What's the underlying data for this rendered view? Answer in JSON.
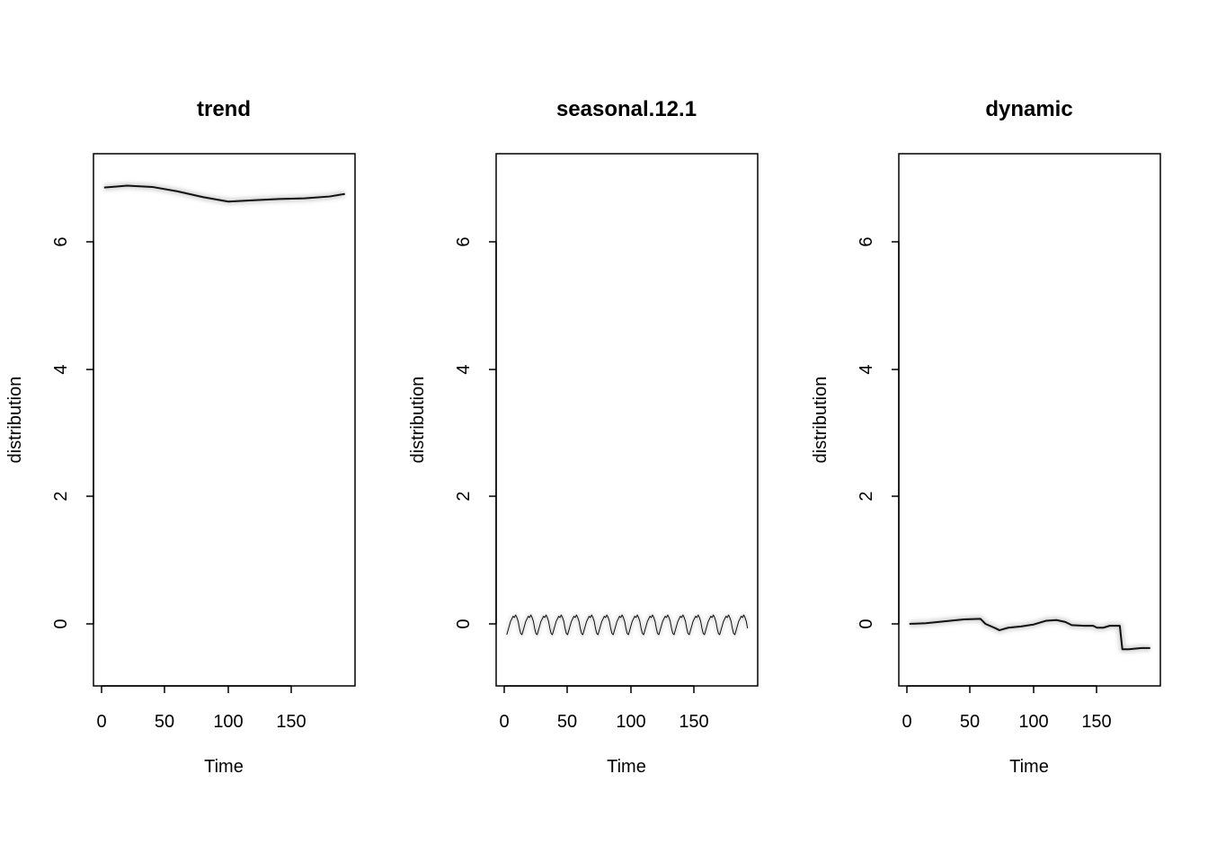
{
  "chart_data": [
    {
      "type": "line",
      "title": "trend",
      "xlabel": "Time",
      "ylabel": "distribution",
      "xlim": [
        0,
        192
      ],
      "ylim": [
        -1,
        7.4
      ],
      "xticks": [
        0,
        50,
        100,
        150
      ],
      "yticks": [
        0,
        2,
        4,
        6
      ],
      "grid": false,
      "series": [
        {
          "x": [
            2,
            20,
            40,
            60,
            80,
            100,
            120,
            140,
            160,
            180,
            192
          ],
          "values": [
            6.86,
            6.89,
            6.87,
            6.8,
            6.71,
            6.64,
            6.66,
            6.68,
            6.69,
            6.72,
            6.76
          ]
        }
      ]
    },
    {
      "type": "line",
      "title": "seasonal.12.1",
      "xlabel": "Time",
      "ylabel": "distribution",
      "xlim": [
        0,
        192
      ],
      "ylim": [
        -1,
        7.4
      ],
      "xticks": [
        0,
        50,
        100,
        150
      ],
      "yticks": [
        0,
        2,
        4,
        6
      ],
      "grid": false,
      "series": [
        {
          "period": 12,
          "x_start": 2,
          "x_end": 192,
          "pattern": [
            -0.17,
            -0.1,
            -0.03,
            0.04,
            0.08,
            0.12,
            0.1,
            0.14,
            0.1,
            0.04,
            -0.07,
            -0.15
          ]
        }
      ]
    },
    {
      "type": "line",
      "title": "dynamic",
      "xlabel": "Time",
      "ylabel": "distribution",
      "xlim": [
        0,
        192
      ],
      "ylim": [
        -1,
        7.4
      ],
      "xticks": [
        0,
        50,
        100,
        150
      ],
      "yticks": [
        0,
        2,
        4,
        6
      ],
      "grid": false,
      "series": [
        {
          "x": [
            2,
            15,
            30,
            45,
            58,
            62,
            70,
            73,
            80,
            90,
            100,
            110,
            118,
            125,
            130,
            140,
            147,
            150,
            155,
            160,
            168,
            170,
            175,
            185,
            192
          ],
          "values": [
            0.0,
            0.01,
            0.04,
            0.07,
            0.08,
            0.0,
            -0.07,
            -0.1,
            -0.06,
            -0.04,
            -0.01,
            0.05,
            0.06,
            0.03,
            -0.02,
            -0.03,
            -0.03,
            -0.06,
            -0.06,
            -0.03,
            -0.03,
            -0.4,
            -0.4,
            -0.38,
            -0.38
          ]
        }
      ]
    }
  ]
}
